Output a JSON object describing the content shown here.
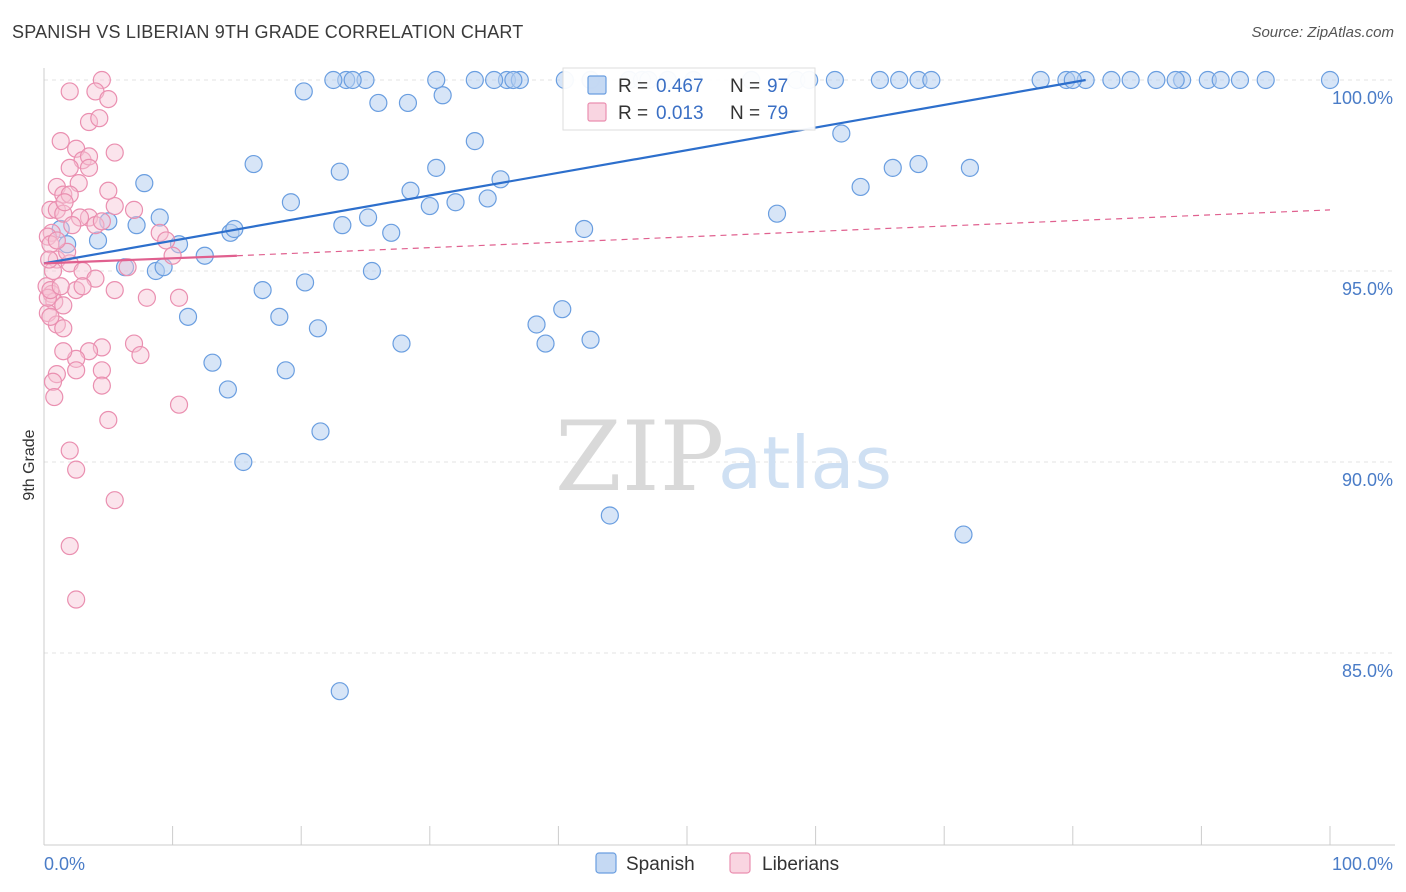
{
  "title": "SPANISH VS LIBERIAN 9TH GRADE CORRELATION CHART",
  "source": "Source: ZipAtlas.com",
  "watermark": {
    "part1": "ZIP",
    "part2": "atlas"
  },
  "colors": {
    "spanish": "#6a9ee0",
    "spanish_fill": "#b7cff0",
    "spanish_line": "#2d6fcc",
    "liberian": "#ea8fb0",
    "liberian_fill": "#f6c3d4",
    "liberian_line": "#e0608f",
    "grid": "#e3e3e3",
    "tick_text": "#4a7cc7"
  },
  "legend": {
    "r_label": "R =",
    "n_label": "N =",
    "spanish": {
      "r": "0.467",
      "n": "97"
    },
    "liberian": {
      "r": "0.013",
      "n": "79"
    }
  },
  "chart_data": {
    "type": "scatter",
    "title": "SPANISH VS LIBERIAN 9TH GRADE CORRELATION CHART",
    "xlabel": "",
    "ylabel": "9th Grade",
    "xlim": [
      0,
      100
    ],
    "ylim": [
      80.5,
      100.8
    ],
    "x_tick_labels": [
      "0.0%",
      "100.0%"
    ],
    "y_ticks": [
      85,
      90,
      95,
      100
    ],
    "y_tick_labels": [
      "85.0%",
      "90.0%",
      "95.0%",
      "100.0%"
    ],
    "grid": true,
    "legend_position": "top-center",
    "series": [
      {
        "name": "Spanish",
        "trend": {
          "x": [
            0,
            81
          ],
          "y": [
            95.2,
            100.0
          ],
          "style": "solid"
        },
        "points": [
          [
            1.3,
            96.1
          ],
          [
            1.8,
            95.7
          ],
          [
            4.2,
            95.8
          ],
          [
            5.0,
            96.3
          ],
          [
            6.3,
            95.1
          ],
          [
            7.2,
            96.2
          ],
          [
            8.7,
            95.0
          ],
          [
            9.3,
            95.1
          ],
          [
            10.5,
            95.7
          ],
          [
            12.5,
            95.4
          ],
          [
            14.5,
            96.0
          ],
          [
            14.8,
            96.1
          ],
          [
            16.3,
            97.8
          ],
          [
            17.0,
            94.5
          ],
          [
            18.3,
            93.8
          ],
          [
            18.8,
            92.4
          ],
          [
            11.2,
            93.8
          ],
          [
            13.1,
            92.6
          ],
          [
            14.3,
            91.9
          ],
          [
            15.5,
            90.0
          ],
          [
            7.8,
            97.3
          ],
          [
            9.0,
            96.4
          ],
          [
            19.2,
            96.8
          ],
          [
            20.3,
            94.7
          ],
          [
            21.3,
            93.5
          ],
          [
            23.2,
            96.2
          ],
          [
            23.0,
            97.6
          ],
          [
            25.2,
            96.4
          ],
          [
            25.5,
            95.0
          ],
          [
            27.8,
            93.1
          ],
          [
            28.5,
            97.1
          ],
          [
            30.0,
            96.7
          ],
          [
            30.5,
            97.7
          ],
          [
            32.0,
            96.8
          ],
          [
            31.0,
            99.6
          ],
          [
            28.3,
            99.4
          ],
          [
            26.0,
            99.4
          ],
          [
            25.0,
            100.0
          ],
          [
            23.5,
            100.0
          ],
          [
            22.5,
            100.0
          ],
          [
            20.2,
            99.7
          ],
          [
            24.0,
            100.0
          ],
          [
            33.5,
            98.4
          ],
          [
            34.5,
            96.9
          ],
          [
            35.5,
            97.4
          ],
          [
            36.0,
            100.0
          ],
          [
            37.0,
            100.0
          ],
          [
            36.5,
            100.0
          ],
          [
            40.3,
            94.0
          ],
          [
            38.3,
            93.6
          ],
          [
            39.0,
            93.1
          ],
          [
            42.5,
            93.2
          ],
          [
            42.0,
            96.1
          ],
          [
            45.5,
            100.0
          ],
          [
            46.5,
            100.0
          ],
          [
            48.5,
            100.0
          ],
          [
            50.5,
            100.0
          ],
          [
            55.0,
            100.0
          ],
          [
            57.0,
            96.5
          ],
          [
            58.5,
            100.0
          ],
          [
            61.5,
            100.0
          ],
          [
            62.0,
            98.6
          ],
          [
            63.5,
            97.2
          ],
          [
            65.0,
            100.0
          ],
          [
            66.0,
            97.7
          ],
          [
            68.0,
            100.0
          ],
          [
            69.0,
            100.0
          ],
          [
            72.0,
            97.7
          ],
          [
            77.5,
            100.0
          ],
          [
            81.0,
            100.0
          ],
          [
            79.5,
            100.0
          ],
          [
            83.0,
            100.0
          ],
          [
            84.5,
            100.0
          ],
          [
            88.5,
            100.0
          ],
          [
            90.5,
            100.0
          ],
          [
            91.5,
            100.0
          ],
          [
            93.0,
            100.0
          ],
          [
            95.0,
            100.0
          ],
          [
            100.0,
            100.0
          ],
          [
            33.5,
            100.0
          ],
          [
            30.5,
            100.0
          ],
          [
            40.5,
            100.0
          ],
          [
            42.5,
            100.0
          ],
          [
            47.0,
            100.0
          ],
          [
            44.0,
            88.6
          ],
          [
            71.5,
            88.1
          ],
          [
            23.0,
            84.0
          ],
          [
            21.5,
            90.8
          ],
          [
            27.0,
            96.0
          ],
          [
            42.5,
            100.0
          ],
          [
            35.0,
            100.0
          ],
          [
            59.5,
            100.0
          ],
          [
            66.5,
            100.0
          ],
          [
            80.0,
            100.0
          ],
          [
            86.5,
            100.0
          ],
          [
            88.0,
            100.0
          ],
          [
            68.0,
            97.8
          ]
        ]
      },
      {
        "name": "Liberians",
        "trend": {
          "x": [
            0,
            15
          ],
          "y": [
            95.2,
            95.4
          ],
          "style": "solid"
        },
        "trend_extension": {
          "x": [
            15,
            100
          ],
          "y": [
            95.4,
            96.6
          ],
          "style": "dashed"
        },
        "points": [
          [
            4.5,
            100.0
          ],
          [
            4.0,
            99.7
          ],
          [
            5.0,
            99.5
          ],
          [
            2.0,
            99.7
          ],
          [
            3.5,
            98.9
          ],
          [
            4.3,
            99.0
          ],
          [
            1.3,
            98.4
          ],
          [
            2.5,
            98.2
          ],
          [
            3.0,
            97.9
          ],
          [
            3.5,
            98.0
          ],
          [
            5.5,
            98.1
          ],
          [
            2.0,
            97.7
          ],
          [
            2.7,
            97.3
          ],
          [
            1.0,
            97.2
          ],
          [
            1.5,
            97.0
          ],
          [
            2.0,
            97.0
          ],
          [
            0.5,
            96.6
          ],
          [
            1.0,
            96.6
          ],
          [
            1.5,
            96.5
          ],
          [
            0.6,
            96.0
          ],
          [
            3.5,
            96.4
          ],
          [
            4.0,
            96.2
          ],
          [
            5.5,
            96.7
          ],
          [
            7.0,
            96.6
          ],
          [
            0.3,
            95.9
          ],
          [
            0.5,
            95.7
          ],
          [
            1.0,
            95.3
          ],
          [
            2.0,
            95.2
          ],
          [
            3.0,
            95.0
          ],
          [
            4.0,
            94.8
          ],
          [
            0.2,
            94.6
          ],
          [
            0.6,
            94.4
          ],
          [
            0.8,
            94.2
          ],
          [
            1.5,
            94.1
          ],
          [
            2.5,
            94.5
          ],
          [
            0.3,
            93.9
          ],
          [
            1.0,
            93.6
          ],
          [
            1.5,
            93.5
          ],
          [
            0.5,
            93.8
          ],
          [
            5.5,
            94.5
          ],
          [
            8.0,
            94.3
          ],
          [
            10.5,
            94.3
          ],
          [
            7.0,
            93.1
          ],
          [
            7.5,
            92.8
          ],
          [
            4.5,
            93.0
          ],
          [
            3.5,
            92.9
          ],
          [
            2.5,
            92.7
          ],
          [
            1.5,
            92.9
          ],
          [
            1.0,
            92.3
          ],
          [
            0.7,
            92.1
          ],
          [
            2.5,
            92.4
          ],
          [
            4.5,
            92.4
          ],
          [
            4.5,
            92.0
          ],
          [
            0.8,
            91.7
          ],
          [
            10.5,
            91.5
          ],
          [
            5.0,
            91.1
          ],
          [
            2.0,
            90.3
          ],
          [
            2.5,
            89.8
          ],
          [
            5.5,
            89.0
          ],
          [
            2.0,
            87.8
          ],
          [
            2.5,
            86.4
          ],
          [
            0.3,
            94.3
          ],
          [
            0.5,
            94.5
          ],
          [
            1.3,
            94.6
          ],
          [
            2.8,
            96.4
          ],
          [
            4.5,
            96.3
          ],
          [
            9.0,
            96.0
          ],
          [
            9.5,
            95.8
          ],
          [
            10.0,
            95.4
          ],
          [
            3.5,
            97.7
          ],
          [
            5.0,
            97.1
          ],
          [
            0.7,
            95.0
          ],
          [
            1.8,
            95.5
          ],
          [
            3.0,
            94.6
          ],
          [
            2.2,
            96.2
          ],
          [
            1.0,
            95.8
          ],
          [
            0.4,
            95.3
          ],
          [
            1.6,
            96.8
          ],
          [
            6.5,
            95.1
          ]
        ]
      }
    ]
  },
  "bottom_legend": {
    "spanish": "Spanish",
    "liberian": "Liberians"
  }
}
